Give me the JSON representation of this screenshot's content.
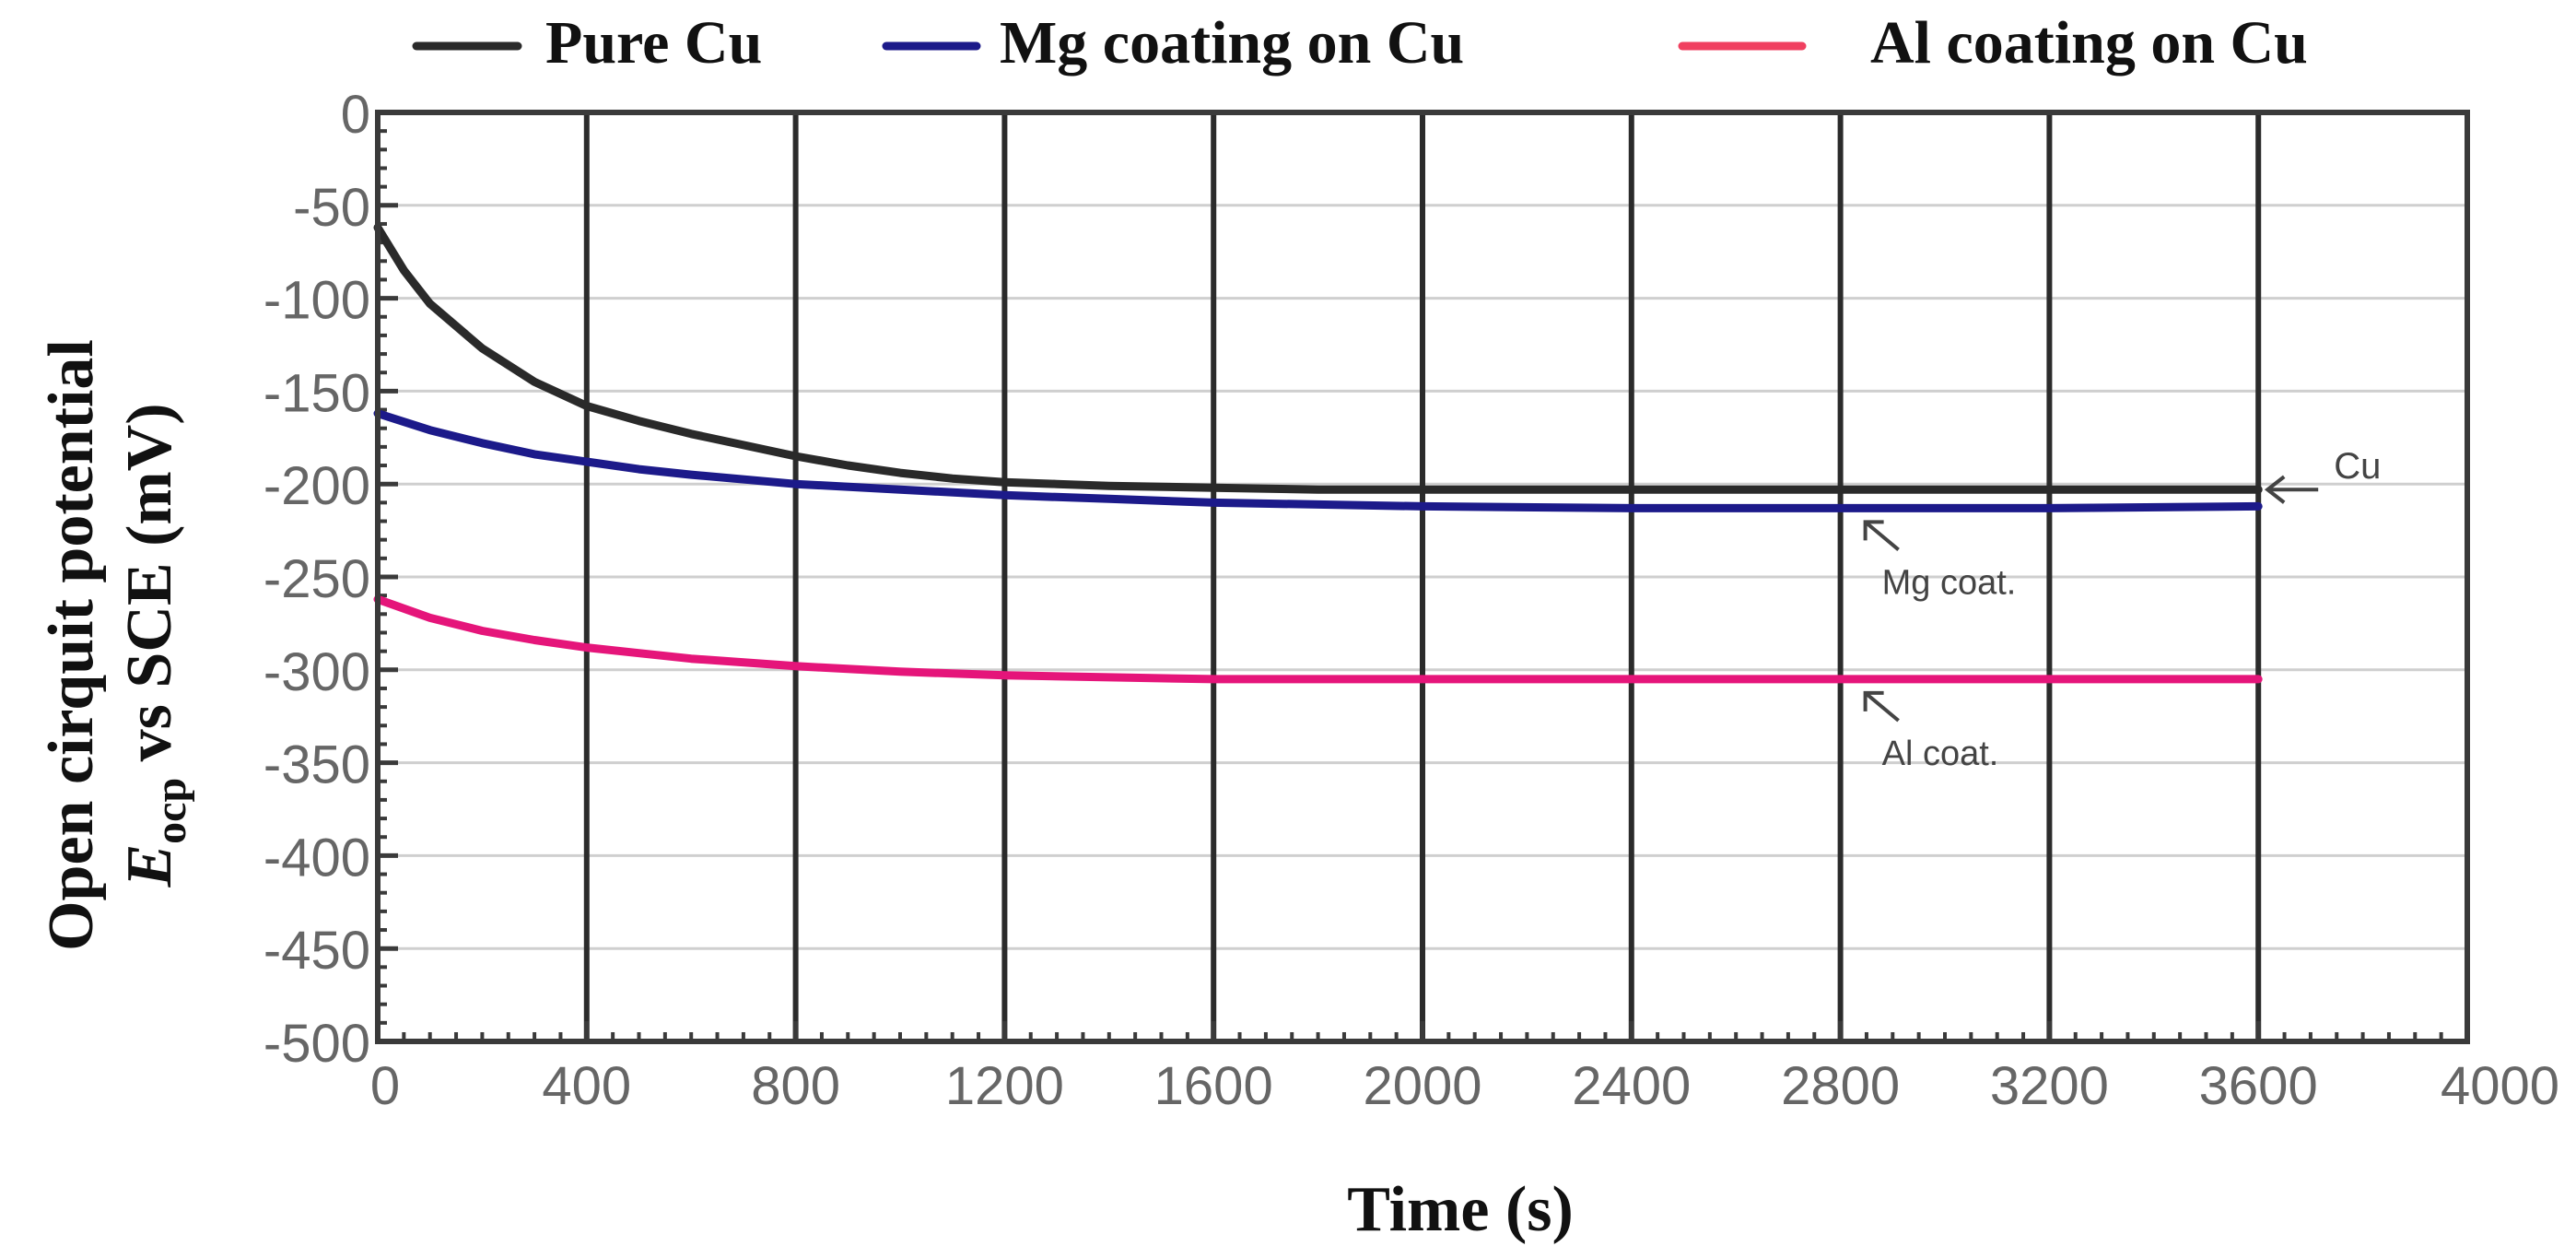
{
  "chart_data": {
    "type": "line",
    "xlabel": "Time (s)",
    "ylabel_line1": "Open cirquit  potential",
    "ylabel_line2_symbol": "E",
    "ylabel_line2_subscript": "ocp",
    "ylabel_line2_rest": " vs SCE (mV)",
    "xlim": [
      0,
      4000
    ],
    "ylim": [
      -500,
      0
    ],
    "x_ticks": [
      0,
      400,
      800,
      1200,
      1600,
      2000,
      2400,
      2800,
      3200,
      3600,
      4000
    ],
    "x_tick_labels": [
      "0",
      "400",
      "800",
      "1200",
      "1600",
      "2000",
      "2400",
      "2800",
      "3200",
      "3600",
      "4000"
    ],
    "y_ticks": [
      0,
      -50,
      -100,
      -150,
      -200,
      -250,
      -300,
      -350,
      -400,
      -450,
      -500
    ],
    "y_tick_labels": [
      "0",
      "-50",
      "-100",
      "-150",
      "-200",
      "-250",
      "-300",
      "-350",
      "-400",
      "-450",
      "-500"
    ],
    "grid": "major vertical dark lines, horizontal light lines",
    "legend_position": "top",
    "colors": {
      "axis": "#3a3a3a",
      "vgrid": "#2b2b2b",
      "hgrid": "#cfcfcf",
      "tick_label": "#666666",
      "annotation": "#444444"
    },
    "series": [
      {
        "name": "Pure Cu",
        "legend_color": "#2a2a2a",
        "color": "#2a2a2a",
        "x": [
          0,
          50,
          100,
          200,
          300,
          400,
          500,
          600,
          700,
          800,
          900,
          1000,
          1100,
          1200,
          1300,
          1400,
          1600,
          1800,
          2000,
          2400,
          2800,
          3200,
          3600
        ],
        "y": [
          -62,
          -85,
          -103,
          -127,
          -145,
          -158,
          -166,
          -173,
          -179,
          -185,
          -190,
          -194,
          -197,
          -199,
          -200,
          -201,
          -202,
          -203,
          -203,
          -203,
          -203,
          -203,
          -203
        ]
      },
      {
        "name": "Mg coating on Cu",
        "legend_color": "#1c1a8a",
        "color": "#1c1a8a",
        "x": [
          0,
          100,
          200,
          300,
          400,
          500,
          600,
          800,
          1000,
          1200,
          1400,
          1600,
          1800,
          2000,
          2400,
          2800,
          3200,
          3600
        ],
        "y": [
          -162,
          -171,
          -178,
          -184,
          -188,
          -192,
          -195,
          -200,
          -203,
          -206,
          -208,
          -210,
          -211,
          -212,
          -213,
          -213,
          -213,
          -212
        ]
      },
      {
        "name": "Al coating on Cu",
        "legend_color": "#f04060",
        "color": "#e5157a",
        "x": [
          0,
          100,
          200,
          300,
          400,
          500,
          600,
          800,
          1000,
          1200,
          1400,
          1600,
          1800,
          2000,
          2400,
          2800,
          3200,
          3600
        ],
        "y": [
          -262,
          -272,
          -279,
          -284,
          -288,
          -291,
          -294,
          -298,
          -301,
          -303,
          -304,
          -305,
          -305,
          -305,
          -305,
          -305,
          -305,
          -305
        ]
      }
    ],
    "annotations": [
      {
        "text": "Cu",
        "x": 3600,
        "y": -203,
        "target_series": "Pure Cu"
      },
      {
        "text": "Mg coat.",
        "x": 2830,
        "y": -213,
        "target_series": "Mg coating on Cu"
      },
      {
        "text": "Al coat.",
        "x": 2830,
        "y": -305,
        "target_series": "Al coating on Cu"
      }
    ]
  }
}
